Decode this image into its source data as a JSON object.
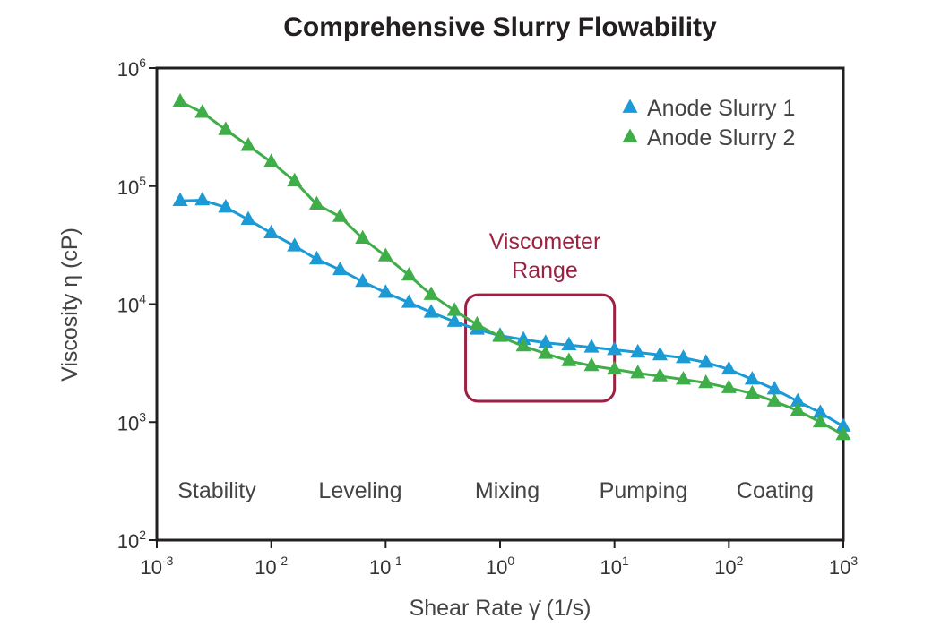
{
  "chart_data": {
    "type": "line",
    "title": "Comprehensive Slurry Flowability",
    "xlabel": "Shear Rate γ̇ (1/s)",
    "ylabel": "Viscosity η (cP)",
    "xscale": "log",
    "yscale": "log",
    "xlim": [
      0.001,
      1000
    ],
    "ylim": [
      100,
      1000000
    ],
    "x_ticks": [
      {
        "base": "10",
        "exp": "-3",
        "value": 0.001
      },
      {
        "base": "10",
        "exp": "-2",
        "value": 0.01
      },
      {
        "base": "10",
        "exp": "-1",
        "value": 0.1
      },
      {
        "base": "10",
        "exp": "0",
        "value": 1
      },
      {
        "base": "10",
        "exp": "1",
        "value": 10
      },
      {
        "base": "10",
        "exp": "2",
        "value": 100
      },
      {
        "base": "10",
        "exp": "3",
        "value": 1000
      }
    ],
    "y_ticks": [
      {
        "base": "10",
        "exp": "2",
        "value": 100
      },
      {
        "base": "10",
        "exp": "3",
        "value": 1000
      },
      {
        "base": "10",
        "exp": "4",
        "value": 10000
      },
      {
        "base": "10",
        "exp": "5",
        "value": 100000
      },
      {
        "base": "10",
        "exp": "6",
        "value": 1000000
      }
    ],
    "legend_position": "top-right",
    "grid": false,
    "series": [
      {
        "name": "Anode Slurry 1",
        "color": "#1b9ad6",
        "marker": "triangle",
        "x": [
          0.0016,
          0.0025,
          0.004,
          0.0063,
          0.01,
          0.016,
          0.025,
          0.04,
          0.063,
          0.1,
          0.16,
          0.25,
          0.4,
          0.63,
          1,
          1.6,
          2.5,
          4,
          6.3,
          10,
          16,
          25,
          40,
          63,
          100,
          160,
          250,
          400,
          630,
          1000
        ],
        "y": [
          75000,
          76000,
          66000,
          52000,
          40000,
          31000,
          24000,
          19500,
          15500,
          12500,
          10300,
          8500,
          7100,
          6100,
          5400,
          5000,
          4700,
          4500,
          4300,
          4100,
          3900,
          3700,
          3500,
          3200,
          2800,
          2300,
          1900,
          1500,
          1200,
          920
        ]
      },
      {
        "name": "Anode Slurry 2",
        "color": "#3fae49",
        "marker": "triangle",
        "x": [
          0.0016,
          0.0025,
          0.004,
          0.0063,
          0.01,
          0.016,
          0.025,
          0.04,
          0.063,
          0.1,
          0.16,
          0.25,
          0.4,
          0.63,
          1,
          1.6,
          2.5,
          4,
          6.3,
          10,
          16,
          25,
          40,
          63,
          100,
          160,
          250,
          400,
          630,
          1000
        ],
        "y": [
          520000,
          420000,
          300000,
          220000,
          160000,
          110000,
          70000,
          55000,
          36000,
          25500,
          17500,
          12000,
          8800,
          6700,
          5300,
          4400,
          3800,
          3300,
          3000,
          2800,
          2600,
          2450,
          2300,
          2150,
          1950,
          1750,
          1500,
          1250,
          1000,
          780
        ]
      }
    ],
    "regions": [
      "Stability",
      "Leveling",
      "Mixing",
      "Pumping",
      "Coating"
    ],
    "annotation": {
      "line1": "Viscometer",
      "line2": "Range",
      "x_range": [
        0.5,
        10
      ],
      "y_range": [
        1500,
        12000
      ],
      "color": "#9b2242"
    }
  }
}
